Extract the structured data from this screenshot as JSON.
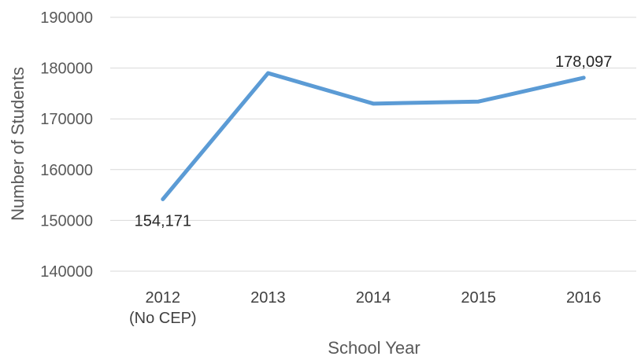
{
  "chart_data": {
    "type": "line",
    "title": "",
    "xlabel": "School Year",
    "ylabel": "Number of Students",
    "categories": [
      [
        "2012",
        "(No CEP)"
      ],
      [
        "2013"
      ],
      [
        "2014"
      ],
      [
        "2015"
      ],
      [
        "2016"
      ]
    ],
    "series": [
      {
        "values": [
          154171,
          179000,
          173000,
          173400,
          178097
        ],
        "color": "#5b9bd5"
      }
    ],
    "data_labels": [
      {
        "index": 0,
        "text": "154,171",
        "position": "below"
      },
      {
        "index": 4,
        "text": "178,097",
        "position": "above"
      }
    ],
    "ylim": [
      140000,
      190000
    ],
    "yticks": [
      "140000",
      "150000",
      "160000",
      "170000",
      "180000",
      "190000"
    ],
    "grid": true,
    "legend": "none"
  }
}
